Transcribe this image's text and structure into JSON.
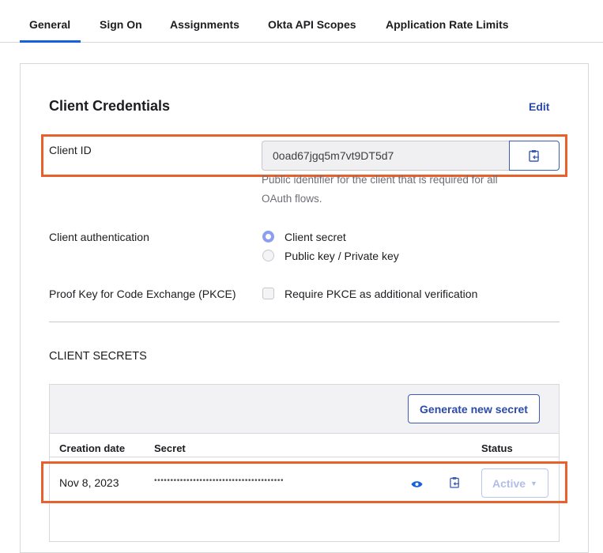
{
  "tabs": [
    "General",
    "Sign On",
    "Assignments",
    "Okta API Scopes",
    "Application Rate Limits"
  ],
  "card": {
    "title": "Client Credentials",
    "edit": "Edit",
    "client_id": {
      "label": "Client ID",
      "value": "0oad67jgq5m7vt9DT5d7",
      "help_line1": "Public identifier for the client that is required for all",
      "help_line2": "OAuth flows."
    },
    "client_auth": {
      "label": "Client authentication",
      "options": [
        "Client secret",
        "Public key / Private key"
      ],
      "selected": "Client secret"
    },
    "pkce": {
      "label": "Proof Key for Code Exchange (PKCE)",
      "checkbox": "Require PKCE as additional verification",
      "checked": false
    },
    "secrets": {
      "title": "CLIENT SECRETS",
      "generate": "Generate new secret",
      "columns": [
        "Creation date",
        "Secret",
        "Status"
      ],
      "rows": [
        {
          "date": "Nov 8, 2023",
          "secret": "••••••••••••••••••••••••••••••••••••••••",
          "status": "Active"
        }
      ]
    }
  },
  "colors": {
    "accent": "#1662dd",
    "highlight": "#e8602c"
  }
}
